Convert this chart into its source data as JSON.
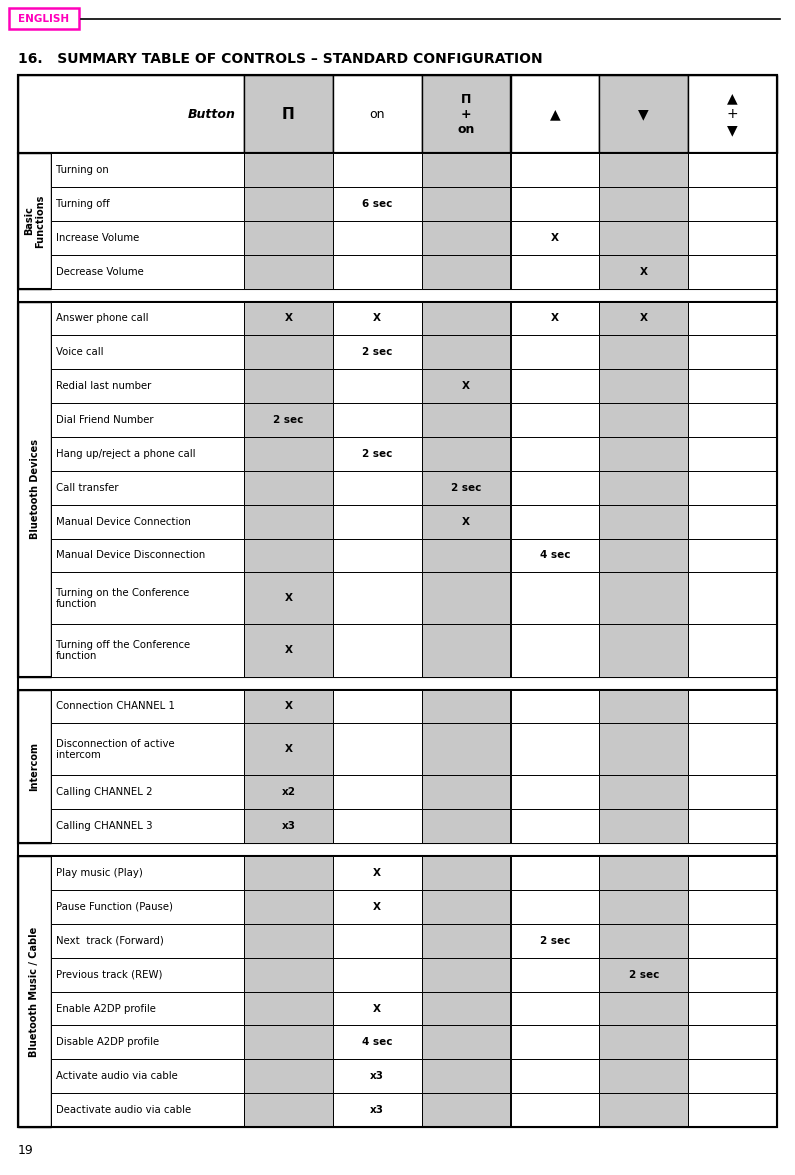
{
  "title": "16.   SUMMARY TABLE OF CONTROLS – STANDARD CONFIGURATION",
  "page_number": "19",
  "sections": [
    {
      "label": "Basic\nFunctions",
      "rows": [
        {
          "desc": "Turning on",
          "cols": [
            "",
            "",
            "",
            "",
            "",
            ""
          ]
        },
        {
          "desc": "Turning off",
          "cols": [
            "",
            "6 sec",
            "",
            "",
            "",
            ""
          ]
        },
        {
          "desc": "Increase Volume",
          "cols": [
            "",
            "",
            "",
            "X",
            "",
            ""
          ]
        },
        {
          "desc": "Decrease Volume",
          "cols": [
            "",
            "",
            "",
            "",
            "X",
            ""
          ]
        }
      ]
    },
    {
      "label": "Bluetooth Devices",
      "rows": [
        {
          "desc": "Answer phone call",
          "cols": [
            "X",
            "X",
            "",
            "X",
            "X",
            ""
          ]
        },
        {
          "desc": "Voice call",
          "cols": [
            "",
            "2 sec",
            "",
            "",
            "",
            ""
          ]
        },
        {
          "desc": "Redial last number",
          "cols": [
            "",
            "",
            "X",
            "",
            "",
            ""
          ]
        },
        {
          "desc": "Dial Friend Number",
          "cols": [
            "2 sec",
            "",
            "",
            "",
            "",
            ""
          ]
        },
        {
          "desc": "Hang up/reject a phone call",
          "cols": [
            "",
            "2 sec",
            "",
            "",
            "",
            ""
          ]
        },
        {
          "desc": "Call transfer",
          "cols": [
            "",
            "",
            "2 sec",
            "",
            "",
            ""
          ]
        },
        {
          "desc": "Manual Device Connection",
          "cols": [
            "",
            "",
            "X",
            "",
            "",
            ""
          ]
        },
        {
          "desc": "Manual Device Disconnection",
          "cols": [
            "",
            "",
            "",
            "4 sec",
            "",
            ""
          ]
        },
        {
          "desc": "Turning on the Conference\nfunction",
          "cols": [
            "X",
            "",
            "",
            "",
            "",
            ""
          ]
        },
        {
          "desc": "Turning off the Conference\nfunction",
          "cols": [
            "X",
            "",
            "",
            "",
            "",
            ""
          ]
        }
      ]
    },
    {
      "label": "Intercom",
      "rows": [
        {
          "desc": "Connection CHANNEL 1",
          "cols": [
            "X",
            "",
            "",
            "",
            "",
            ""
          ]
        },
        {
          "desc": "Disconnection of active\nintercom",
          "cols": [
            "X",
            "",
            "",
            "",
            "",
            ""
          ]
        },
        {
          "desc": "Calling CHANNEL 2",
          "cols": [
            "x2",
            "",
            "",
            "",
            "",
            ""
          ]
        },
        {
          "desc": "Calling CHANNEL 3",
          "cols": [
            "x3",
            "",
            "",
            "",
            "",
            ""
          ]
        }
      ]
    },
    {
      "label": "Bluetooth Music / Cable",
      "rows": [
        {
          "desc": "Play music (Play)",
          "cols": [
            "",
            "X",
            "",
            "",
            "",
            ""
          ]
        },
        {
          "desc": "Pause Function (Pause)",
          "cols": [
            "",
            "X",
            "",
            "",
            "",
            ""
          ]
        },
        {
          "desc": "Next  track (Forward)",
          "cols": [
            "",
            "",
            "",
            "2 sec",
            "",
            ""
          ]
        },
        {
          "desc": "Previous track (REW)",
          "cols": [
            "",
            "",
            "",
            "",
            "2 sec",
            ""
          ]
        },
        {
          "desc": "Enable A2DP profile",
          "cols": [
            "",
            "X",
            "",
            "",
            "",
            ""
          ]
        },
        {
          "desc": "Disable A2DP profile",
          "cols": [
            "",
            "4 sec",
            "",
            "",
            "",
            ""
          ]
        },
        {
          "desc": "Activate audio via cable",
          "cols": [
            "",
            "x3",
            "",
            "",
            "",
            ""
          ]
        },
        {
          "desc": "Deactivate audio via cable",
          "cols": [
            "",
            "x3",
            "",
            "",
            "",
            ""
          ]
        }
      ]
    }
  ],
  "bg_white": "#FFFFFF",
  "bg_gray": "#C8C8C8",
  "border_color": "#000000",
  "english_color": "#FF00BB"
}
